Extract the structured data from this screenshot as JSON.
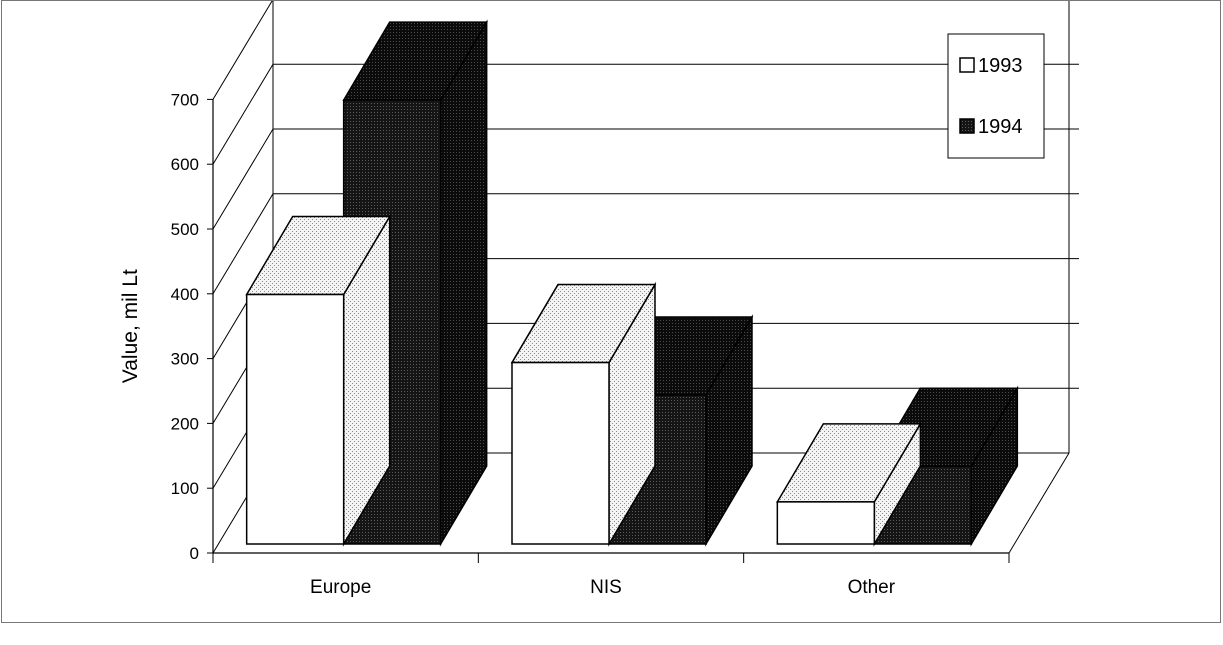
{
  "chart_data": {
    "type": "bar",
    "title": "",
    "xlabel": "",
    "ylabel": "Value, mil Lt",
    "ylim": [
      0,
      700
    ],
    "yticks": [
      0,
      100,
      200,
      300,
      400,
      500,
      600,
      700
    ],
    "grid": true,
    "three_d": true,
    "legend_position": "top-right",
    "categories": [
      "Europe",
      "NIS",
      "Other"
    ],
    "series": [
      {
        "name": "1993",
        "values": [
          385,
          280,
          65
        ],
        "color": "#ffffff"
      },
      {
        "name": "1994",
        "values": [
          685,
          230,
          120
        ],
        "color": "#1a1a1a"
      }
    ]
  }
}
